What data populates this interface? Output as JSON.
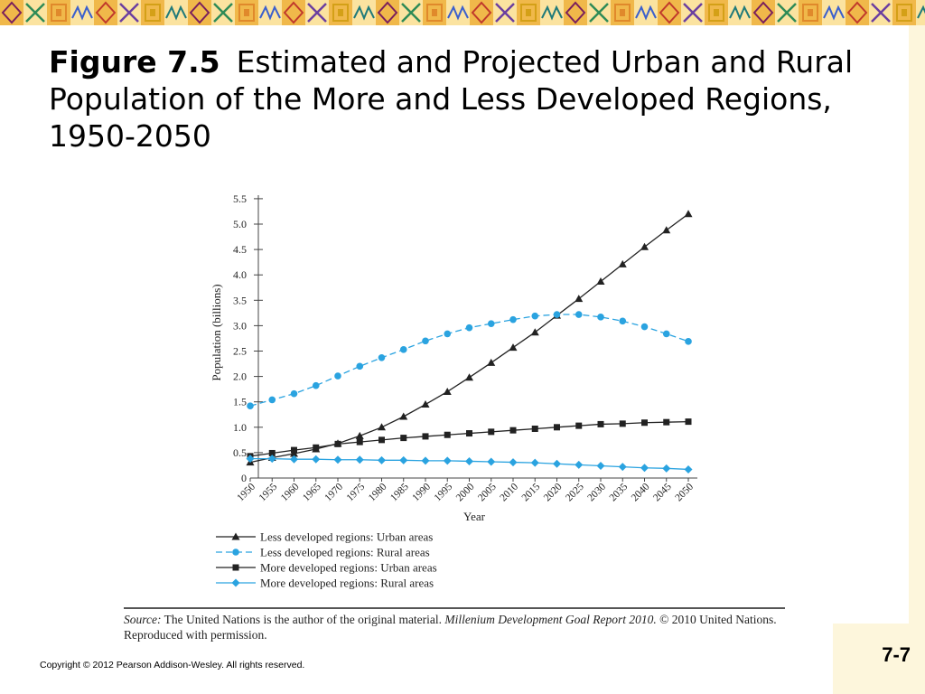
{
  "title": {
    "figure_label": "Figure 7.5",
    "text": "Estimated and Projected Urban and Rural Population of the More and Less Developed Regions, 1950-2050"
  },
  "colors": {
    "black_series": "#222222",
    "blue_series": "#2aa3e0",
    "background": "#ffffff",
    "panel": "#fdf6dc"
  },
  "chart_data": {
    "type": "line",
    "xlabel": "Year",
    "ylabel": "Population (billions)",
    "ylim": [
      0,
      5.5
    ],
    "yticks": [
      "0",
      "0.5",
      "1.0",
      "1.5",
      "2.0",
      "2.5",
      "3.0",
      "3.5",
      "4.0",
      "4.5",
      "5.0",
      "5.5"
    ],
    "x": [
      "1950",
      "1955",
      "1960",
      "1965",
      "1970",
      "1975",
      "1980",
      "1985",
      "1990",
      "1995",
      "2000",
      "2005",
      "2010",
      "2015",
      "2020",
      "2025",
      "2030",
      "2035",
      "2040",
      "2045",
      "2050"
    ],
    "legend_position": "bottom",
    "series": [
      {
        "name": "Less developed regions: Urban areas",
        "color": "#222222",
        "marker": "triangle",
        "line": "solid",
        "values": [
          0.31,
          0.4,
          0.48,
          0.57,
          0.68,
          0.83,
          1.0,
          1.21,
          1.45,
          1.7,
          1.98,
          2.27,
          2.57,
          2.87,
          3.2,
          3.53,
          3.87,
          4.21,
          4.55,
          4.88,
          5.2
        ]
      },
      {
        "name": "Less developed regions: Rural areas",
        "color": "#2aa3e0",
        "marker": "circle",
        "line": "dashed",
        "values": [
          1.42,
          1.54,
          1.66,
          1.82,
          2.01,
          2.2,
          2.37,
          2.53,
          2.7,
          2.84,
          2.96,
          3.04,
          3.12,
          3.19,
          3.22,
          3.22,
          3.17,
          3.09,
          2.98,
          2.84,
          2.69
        ]
      },
      {
        "name": "More developed regions: Urban areas",
        "color": "#222222",
        "marker": "square",
        "line": "solid",
        "values": [
          0.43,
          0.49,
          0.55,
          0.6,
          0.67,
          0.71,
          0.75,
          0.79,
          0.82,
          0.85,
          0.88,
          0.91,
          0.94,
          0.97,
          1.0,
          1.03,
          1.06,
          1.07,
          1.09,
          1.1,
          1.11
        ]
      },
      {
        "name": "More developed regions: Rural areas",
        "color": "#2aa3e0",
        "marker": "diamond",
        "line": "solid",
        "values": [
          0.38,
          0.38,
          0.37,
          0.37,
          0.36,
          0.36,
          0.35,
          0.35,
          0.34,
          0.34,
          0.33,
          0.32,
          0.31,
          0.3,
          0.28,
          0.26,
          0.24,
          0.22,
          0.2,
          0.19,
          0.17
        ]
      }
    ]
  },
  "source": {
    "label": "Source:",
    "text_1": "The United Nations is the author of the original material.",
    "italic": "Millenium Development Goal Report 2010.",
    "text_2": "© 2010 United Nations. Reproduced with permission."
  },
  "footer": {
    "copyright": "Copyright © 2012 Pearson Addison-Wesley. All rights reserved.",
    "page_number": "7-7"
  }
}
